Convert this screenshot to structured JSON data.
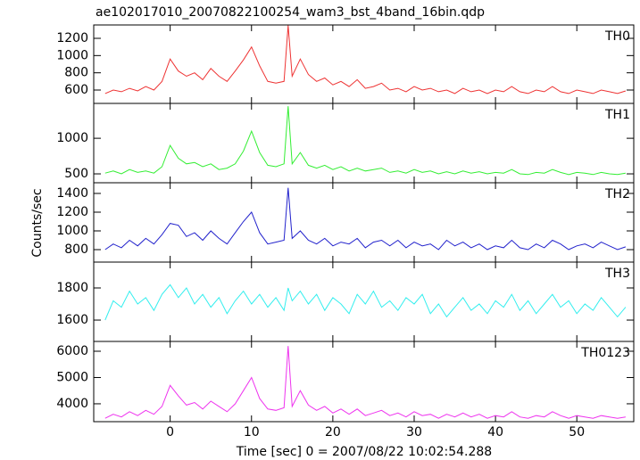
{
  "chart_data": [
    {
      "type": "line",
      "title": "ae102017010_20070822100254_wam3_bst_4band_16bin.qdp",
      "label": "TH0",
      "color": "#ee3333",
      "x": [
        -8,
        -7,
        -6,
        -5,
        -4,
        -3,
        -2,
        -1,
        0,
        1,
        2,
        3,
        4,
        5,
        6,
        7,
        8,
        9,
        10,
        11,
        12,
        13,
        14,
        14.5,
        15,
        16,
        17,
        18,
        19,
        20,
        21,
        22,
        23,
        24,
        25,
        26,
        27,
        28,
        29,
        30,
        31,
        32,
        33,
        34,
        35,
        36,
        37,
        38,
        39,
        40,
        41,
        42,
        43,
        44,
        45,
        46,
        47,
        48,
        49,
        50,
        51,
        52,
        53,
        54,
        55,
        56
      ],
      "values": [
        560,
        600,
        580,
        620,
        590,
        640,
        600,
        700,
        960,
        820,
        760,
        800,
        720,
        850,
        760,
        700,
        820,
        950,
        1100,
        880,
        700,
        680,
        700,
        1350,
        760,
        960,
        780,
        700,
        740,
        660,
        700,
        640,
        720,
        620,
        640,
        680,
        600,
        620,
        580,
        640,
        600,
        620,
        580,
        600,
        560,
        620,
        580,
        600,
        560,
        600,
        580,
        640,
        580,
        560,
        600,
        580,
        640,
        580,
        560,
        600,
        580,
        560,
        600,
        580,
        560,
        590
      ],
      "xlim": [
        -9.4,
        57
      ],
      "ylim": [
        445,
        1355
      ],
      "yticks": [
        600,
        800,
        1000,
        1200
      ]
    },
    {
      "type": "line",
      "label": "TH1",
      "color": "#33ee33",
      "x": [
        -8,
        -7,
        -6,
        -5,
        -4,
        -3,
        -2,
        -1,
        0,
        1,
        2,
        3,
        4,
        5,
        6,
        7,
        8,
        9,
        10,
        11,
        12,
        13,
        14,
        14.5,
        15,
        16,
        17,
        18,
        19,
        20,
        21,
        22,
        23,
        24,
        25,
        26,
        27,
        28,
        29,
        30,
        31,
        32,
        33,
        34,
        35,
        36,
        37,
        38,
        39,
        40,
        41,
        42,
        43,
        44,
        45,
        46,
        47,
        48,
        49,
        50,
        51,
        52,
        53,
        54,
        55,
        56
      ],
      "values": [
        510,
        540,
        500,
        560,
        520,
        540,
        510,
        600,
        900,
        720,
        640,
        660,
        600,
        640,
        560,
        580,
        640,
        820,
        1100,
        800,
        620,
        600,
        640,
        1450,
        640,
        800,
        620,
        580,
        620,
        560,
        600,
        540,
        580,
        540,
        560,
        580,
        520,
        540,
        510,
        560,
        520,
        540,
        500,
        530,
        500,
        540,
        510,
        530,
        500,
        520,
        510,
        560,
        500,
        490,
        520,
        510,
        560,
        520,
        490,
        520,
        510,
        490,
        520,
        500,
        490,
        510
      ],
      "xlim": [
        -9.4,
        57
      ],
      "ylim": [
        375,
        1490
      ],
      "yticks": [
        500,
        1000
      ]
    },
    {
      "type": "line",
      "label": "TH2",
      "color": "#2222cc",
      "ylabel": "Counts/sec",
      "x": [
        -8,
        -7,
        -6,
        -5,
        -4,
        -3,
        -2,
        -1,
        0,
        1,
        2,
        3,
        4,
        5,
        6,
        7,
        8,
        9,
        10,
        11,
        12,
        13,
        14,
        14.5,
        15,
        16,
        17,
        18,
        19,
        20,
        21,
        22,
        23,
        24,
        25,
        26,
        27,
        28,
        29,
        30,
        31,
        32,
        33,
        34,
        35,
        36,
        37,
        38,
        39,
        40,
        41,
        42,
        43,
        44,
        45,
        46,
        47,
        48,
        49,
        50,
        51,
        52,
        53,
        54,
        55,
        56
      ],
      "values": [
        800,
        860,
        820,
        900,
        840,
        920,
        860,
        960,
        1080,
        1060,
        940,
        980,
        900,
        1000,
        920,
        860,
        980,
        1100,
        1200,
        980,
        860,
        880,
        900,
        1460,
        920,
        1000,
        900,
        860,
        920,
        840,
        880,
        860,
        920,
        820,
        880,
        900,
        840,
        900,
        820,
        880,
        840,
        860,
        800,
        900,
        840,
        880,
        820,
        860,
        800,
        840,
        820,
        900,
        820,
        800,
        860,
        820,
        900,
        860,
        800,
        840,
        860,
        820,
        880,
        840,
        800,
        830
      ],
      "xlim": [
        -9.4,
        57
      ],
      "ylim": [
        667,
        1514
      ],
      "yticks": [
        800,
        1000,
        1200,
        1400
      ]
    },
    {
      "type": "line",
      "label": "TH3",
      "color": "#33eeee",
      "x": [
        -8,
        -7,
        -6,
        -5,
        -4,
        -3,
        -2,
        -1,
        0,
        1,
        2,
        3,
        4,
        5,
        6,
        7,
        8,
        9,
        10,
        11,
        12,
        13,
        14,
        14.5,
        15,
        16,
        17,
        18,
        19,
        20,
        21,
        22,
        23,
        24,
        25,
        26,
        27,
        28,
        29,
        30,
        31,
        32,
        33,
        34,
        35,
        36,
        37,
        38,
        39,
        40,
        41,
        42,
        43,
        44,
        45,
        46,
        47,
        48,
        49,
        50,
        51,
        52,
        53,
        54,
        55,
        56
      ],
      "values": [
        1600,
        1720,
        1680,
        1780,
        1700,
        1740,
        1660,
        1760,
        1820,
        1740,
        1800,
        1700,
        1760,
        1680,
        1740,
        1640,
        1720,
        1780,
        1700,
        1760,
        1680,
        1740,
        1660,
        1800,
        1720,
        1780,
        1700,
        1760,
        1660,
        1740,
        1700,
        1640,
        1760,
        1700,
        1780,
        1680,
        1720,
        1660,
        1740,
        1700,
        1760,
        1640,
        1700,
        1620,
        1680,
        1740,
        1660,
        1700,
        1640,
        1720,
        1680,
        1760,
        1660,
        1720,
        1640,
        1700,
        1760,
        1680,
        1720,
        1640,
        1700,
        1660,
        1740,
        1680,
        1620,
        1680
      ],
      "xlim": [
        -9.4,
        57
      ],
      "ylim": [
        1467,
        1961
      ],
      "yticks": [
        1600,
        1800
      ]
    },
    {
      "type": "line",
      "label": "TH0123",
      "color": "#ee33ee",
      "xlabel": "Time [sec] 0 = 2007/08/22 10:02:54.288",
      "x": [
        -8,
        -7,
        -6,
        -5,
        -4,
        -3,
        -2,
        -1,
        0,
        1,
        2,
        3,
        4,
        5,
        6,
        7,
        8,
        9,
        10,
        11,
        12,
        13,
        14,
        14.5,
        15,
        16,
        17,
        18,
        19,
        20,
        21,
        22,
        23,
        24,
        25,
        26,
        27,
        28,
        29,
        30,
        31,
        32,
        33,
        34,
        35,
        36,
        37,
        38,
        39,
        40,
        41,
        42,
        43,
        44,
        45,
        46,
        47,
        48,
        49,
        50,
        51,
        52,
        53,
        54,
        55,
        56
      ],
      "values": [
        3450,
        3600,
        3500,
        3700,
        3550,
        3750,
        3600,
        3900,
        4700,
        4300,
        3950,
        4050,
        3800,
        4100,
        3900,
        3700,
        4000,
        4500,
        5000,
        4200,
        3800,
        3750,
        3850,
        6200,
        3900,
        4500,
        3950,
        3750,
        3900,
        3650,
        3800,
        3600,
        3800,
        3550,
        3650,
        3750,
        3550,
        3650,
        3500,
        3700,
        3550,
        3600,
        3450,
        3600,
        3500,
        3650,
        3500,
        3600,
        3450,
        3550,
        3500,
        3700,
        3500,
        3450,
        3550,
        3500,
        3700,
        3550,
        3450,
        3550,
        3500,
        3450,
        3550,
        3500,
        3450,
        3500
      ],
      "xlim": [
        -9.4,
        57
      ],
      "ylim": [
        3320,
        6373
      ],
      "yticks": [
        4000,
        5000,
        6000
      ],
      "xticks": [
        0,
        10,
        20,
        30,
        40,
        50
      ]
    }
  ]
}
